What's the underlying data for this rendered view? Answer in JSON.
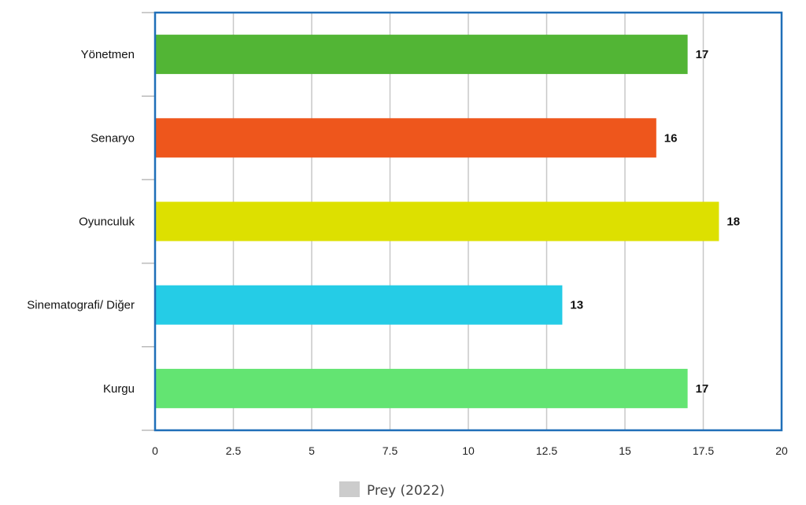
{
  "chart_data": {
    "type": "bar",
    "orientation": "horizontal",
    "categories": [
      "Yönetmen",
      "Senaryo",
      "Oyunculuk",
      "Sinematografi/ Diğer",
      "Kurgu"
    ],
    "series": [
      {
        "name": "Prey (2022)",
        "values": [
          17,
          16,
          18,
          13,
          17
        ],
        "colors": [
          "#52b535",
          "#ee561c",
          "#dde000",
          "#25cce6",
          "#63e472"
        ],
        "legend_color": "#cccccc"
      }
    ],
    "xlim": [
      0,
      20
    ],
    "xticks": [
      "0",
      "2.5",
      "5",
      "7.5",
      "10",
      "12.5",
      "15",
      "17.5",
      "20"
    ],
    "data_labels": [
      "17",
      "16",
      "18",
      "13",
      "17"
    ],
    "grid": true,
    "legend_position": "bottom",
    "frame_color": "#1f6fb8"
  }
}
